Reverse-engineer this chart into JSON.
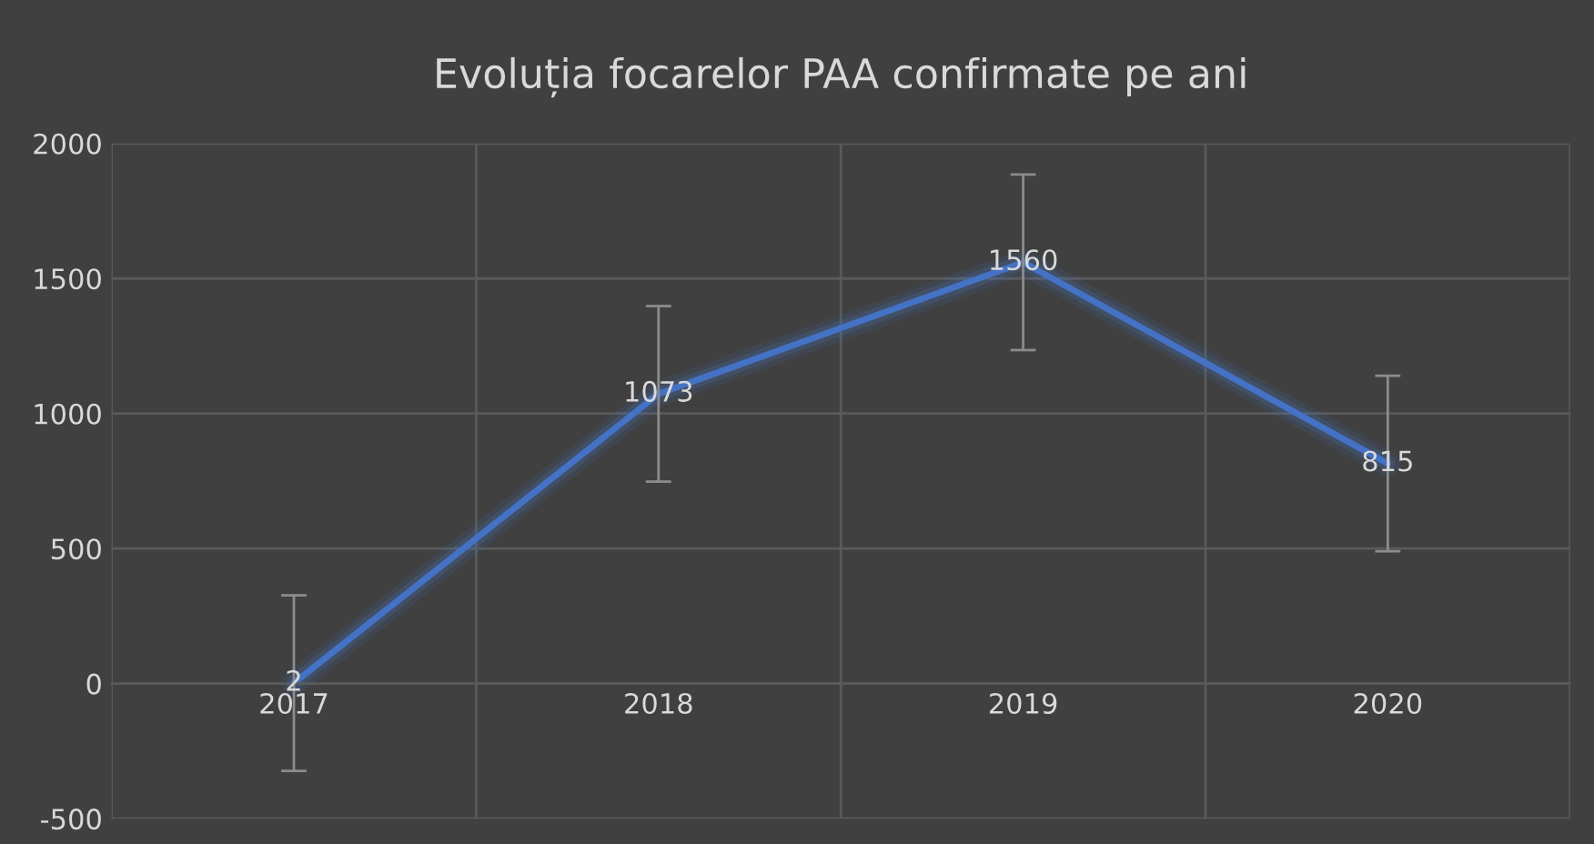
{
  "chart_data": {
    "type": "line",
    "title": "Evoluția focarelor PAA confirmate pe ani",
    "categories": [
      "2017",
      "2018",
      "2019",
      "2020"
    ],
    "series": [
      {
        "color": "#4472c4",
        "values": [
          2,
          1073,
          1560,
          815
        ],
        "errors": [
          325,
          325,
          325,
          325
        ]
      }
    ],
    "ylim": [
      -500,
      2000
    ],
    "yticks": [
      -500,
      0,
      500,
      1000,
      1500,
      2000
    ],
    "grid": true,
    "data_labels": true,
    "marker": "none",
    "line_style": "solid",
    "legend": false
  }
}
